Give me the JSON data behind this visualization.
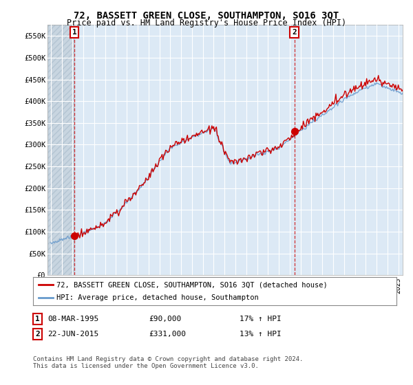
{
  "title": "72, BASSETT GREEN CLOSE, SOUTHAMPTON, SO16 3QT",
  "subtitle": "Price paid vs. HM Land Registry's House Price Index (HPI)",
  "ylim": [
    0,
    575000
  ],
  "yticks": [
    0,
    50000,
    100000,
    150000,
    200000,
    250000,
    300000,
    350000,
    400000,
    450000,
    500000,
    550000
  ],
  "ytick_labels": [
    "£0",
    "£50K",
    "£100K",
    "£150K",
    "£200K",
    "£250K",
    "£300K",
    "£350K",
    "£400K",
    "£450K",
    "£500K",
    "£550K"
  ],
  "background_color": "#ffffff",
  "plot_bg_color": "#dce9f5",
  "plot_bg_hatch_color": "#c8d8e8",
  "grid_color": "#ffffff",
  "hpi_color": "#6699cc",
  "price_color": "#cc0000",
  "t1_year": 1995.17,
  "t2_year": 2015.42,
  "t1_price": 90000,
  "t2_price": 331000,
  "xlim_left": 1992.7,
  "xlim_right": 2025.4,
  "legend_label1": "72, BASSETT GREEN CLOSE, SOUTHAMPTON, SO16 3QT (detached house)",
  "legend_label2": "HPI: Average price, detached house, Southampton",
  "fn1_num": "1",
  "fn1_date": "08-MAR-1995",
  "fn1_price": "£90,000",
  "fn1_hpi": "17% ↑ HPI",
  "fn2_num": "2",
  "fn2_date": "22-JUN-2015",
  "fn2_price": "£331,000",
  "fn2_hpi": "13% ↑ HPI",
  "copyright_text": "Contains HM Land Registry data © Crown copyright and database right 2024.\nThis data is licensed under the Open Government Licence v3.0."
}
